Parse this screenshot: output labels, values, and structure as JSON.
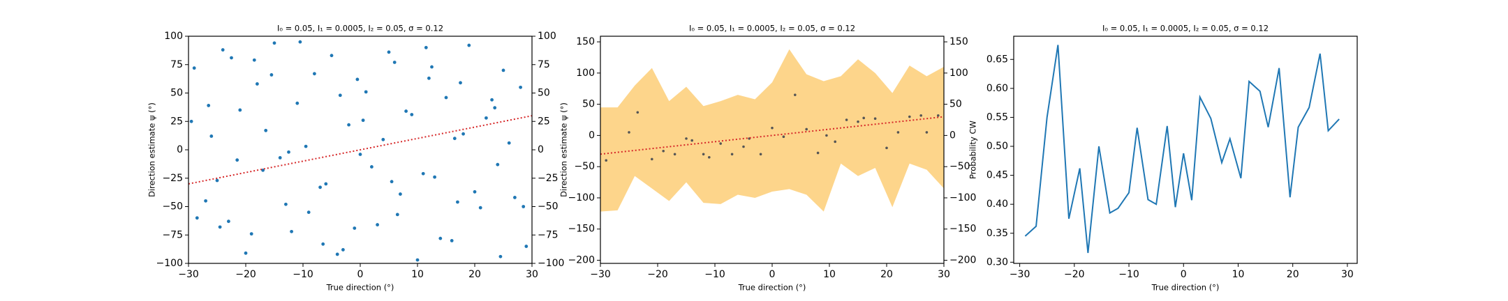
{
  "chart_data": [
    {
      "type": "scatter",
      "title": "I₀ = 0.05, I₁ = 0.0005, I₂ = 0.05, σ = 0.12",
      "xlabel": "True direction (°)",
      "ylabel": "Direction estimate ψ (°)",
      "color": "#1f77b4",
      "x": [
        -29,
        -27,
        -26,
        -24,
        -23,
        -21,
        -20,
        -18,
        -17,
        -15,
        -14,
        -12,
        -11,
        -9,
        -8,
        -6,
        -5,
        -3,
        -2,
        0,
        1,
        3,
        4,
        6,
        7,
        9,
        10,
        12,
        13,
        15,
        16,
        18,
        19,
        21,
        22,
        24,
        25,
        27,
        28,
        29,
        -28.5,
        -26.5,
        -25,
        -22.5,
        -21.5,
        -19,
        -16.5,
        -15.5,
        -13,
        -10.5,
        -9.5,
        -7,
        -4,
        -3.5,
        -1,
        0.5,
        2,
        5,
        6.5,
        8,
        11,
        12.5,
        14,
        16.5,
        17.5,
        20,
        23,
        24.5,
        26,
        28.5,
        -29.5,
        -24.5,
        -18.5,
        -12.5,
        -6.5,
        -0.5,
        5.5,
        11.5,
        17,
        23.5
      ],
      "values": [
        72,
        -45,
        12,
        88,
        -63,
        35,
        -91,
        58,
        -18,
        94,
        -7,
        -72,
        41,
        -55,
        67,
        -30,
        83,
        -88,
        22,
        -4,
        51,
        -66,
        9,
        77,
        -39,
        31,
        -97,
        63,
        -24,
        46,
        -80,
        14,
        92,
        -51,
        28,
        -13,
        70,
        -42,
        55,
        -85,
        -60,
        39,
        -27,
        81,
        -9,
        -74,
        17,
        66,
        -48,
        95,
        3,
        -33,
        -92,
        48,
        -69,
        26,
        -15,
        86,
        -57,
        34,
        -21,
        73,
        -78,
        10,
        59,
        -37,
        44,
        -94,
        6,
        -50,
        25,
        -68,
        79,
        -2,
        -83,
        62,
        -28,
        90,
        -46,
        37
      ],
      "fit": {
        "x": [
          -30,
          30
        ],
        "values": [
          -30,
          30
        ],
        "color": "#d62728"
      },
      "xlim": [
        -30,
        30
      ],
      "ylim": [
        -100,
        100
      ],
      "y2lim": [
        -100,
        100
      ],
      "xticks": [
        {
          "value": -30,
          "label": "−30"
        },
        {
          "value": -20,
          "label": "−20"
        },
        {
          "value": -10,
          "label": "−10"
        },
        0,
        10,
        20,
        30
      ],
      "yticks": [
        {
          "value": -100,
          "label": "−100"
        },
        {
          "value": -75,
          "label": "−75"
        },
        {
          "value": -50,
          "label": "−50"
        },
        {
          "value": -25,
          "label": "−25"
        },
        0,
        25,
        50,
        75,
        100
      ],
      "y2ticks": [
        {
          "value": -100,
          "label": "−100"
        },
        {
          "value": -75,
          "label": "−75"
        },
        {
          "value": -50,
          "label": "−50"
        },
        {
          "value": -25,
          "label": "−25"
        },
        0,
        25,
        50,
        75,
        100
      ]
    },
    {
      "type": "band",
      "title": "I₀ = 0.05, I₁ = 0.0005, I₂ = 0.05, σ = 0.12",
      "xlabel": "True direction (°)",
      "ylabel": "Direction estimate ψ (°)",
      "band": {
        "color": "#fdd58b",
        "x": [
          -30,
          -27,
          -24,
          -21,
          -18,
          -15,
          -12,
          -9,
          -6,
          -3,
          0,
          3,
          6,
          9,
          12,
          15,
          18,
          21,
          24,
          27,
          30
        ],
        "lower": [
          -122,
          -120,
          -65,
          -85,
          -105,
          -75,
          -108,
          -110,
          -95,
          -100,
          -90,
          -86,
          -95,
          -122,
          -45,
          -65,
          -52,
          -115,
          -45,
          -55,
          -85
        ],
        "upper": [
          45,
          45,
          80,
          108,
          55,
          78,
          47,
          55,
          65,
          58,
          85,
          138,
          98,
          87,
          95,
          122,
          100,
          68,
          112,
          95,
          110
        ]
      },
      "color": "#555555",
      "x": [
        -29,
        -25,
        -23.5,
        -21,
        -19,
        -17,
        -15,
        -14,
        -12,
        -11,
        -9,
        -7,
        -5,
        -4,
        -2,
        0,
        2,
        4,
        6,
        8,
        9.5,
        11,
        13,
        15,
        16,
        18,
        20,
        22,
        24,
        26,
        27,
        29
      ],
      "values": [
        -40,
        5,
        37,
        -38,
        -25,
        -30,
        -5,
        -8,
        -30,
        -35,
        -13,
        -30,
        -18,
        -5,
        -30,
        12,
        -2,
        65,
        10,
        -28,
        0,
        -10,
        25,
        22,
        28,
        27,
        -20,
        5,
        30,
        32,
        5,
        32
      ],
      "fit": {
        "x": [
          -30,
          30
        ],
        "values": [
          -30,
          30
        ],
        "color": "#d62728"
      },
      "xlim": [
        -30,
        30
      ],
      "ylim": [
        -205,
        159
      ],
      "y2lim": [
        -205,
        159
      ],
      "xticks": [
        {
          "value": -30,
          "label": "−30"
        },
        {
          "value": -20,
          "label": "−20"
        },
        {
          "value": -10,
          "label": "−10"
        },
        0,
        10,
        20,
        30
      ],
      "yticks": [
        {
          "value": -200,
          "label": "−200"
        },
        {
          "value": -150,
          "label": "−150"
        },
        {
          "value": -100,
          "label": "−100"
        },
        {
          "value": -50,
          "label": "−50"
        },
        0,
        50,
        100,
        150
      ],
      "y2ticks": [
        {
          "value": -200,
          "label": "−200"
        },
        {
          "value": -150,
          "label": "−150"
        },
        {
          "value": -100,
          "label": "−100"
        },
        {
          "value": -50,
          "label": "−50"
        },
        0,
        50,
        100,
        150
      ]
    },
    {
      "type": "line",
      "title": "I₀ = 0.05, I₁ = 0.0005, I₂ = 0.05, σ = 0.12",
      "xlabel": "True direction (°)",
      "ylabel": "Probability CW",
      "color": "#1f77b4",
      "x": [
        -29,
        -27,
        -25,
        -23,
        -21,
        -19,
        -17.5,
        -15.5,
        -13.5,
        -12,
        -10,
        -8.5,
        -6.5,
        -5,
        -3,
        -1.5,
        0,
        1.5,
        3,
        5,
        7,
        8.5,
        10.5,
        12,
        14,
        15.5,
        17.5,
        19.5,
        21,
        23,
        25,
        26.5,
        28.5
      ],
      "values": [
        0.345,
        0.362,
        0.55,
        0.675,
        0.375,
        0.462,
        0.316,
        0.5,
        0.385,
        0.393,
        0.42,
        0.532,
        0.408,
        0.4,
        0.535,
        0.395,
        0.488,
        0.407,
        0.585,
        0.548,
        0.472,
        0.513,
        0.445,
        0.612,
        0.595,
        0.533,
        0.635,
        0.412,
        0.533,
        0.567,
        0.66,
        0.527,
        0.547
      ],
      "xlim": [
        -31.1,
        31.8
      ],
      "ylim": [
        0.298,
        0.69
      ],
      "xticks": [
        {
          "value": -30,
          "label": "−30"
        },
        {
          "value": -20,
          "label": "−20"
        },
        {
          "value": -10,
          "label": "−10"
        },
        0,
        10,
        20,
        30
      ],
      "yticks": [
        {
          "value": 0.3,
          "label": "0.30"
        },
        0.35,
        {
          "value": 0.4,
          "label": "0.40"
        },
        0.45,
        {
          "value": 0.5,
          "label": "0.50"
        },
        0.55,
        {
          "value": 0.6,
          "label": "0.60"
        },
        0.65
      ]
    }
  ]
}
